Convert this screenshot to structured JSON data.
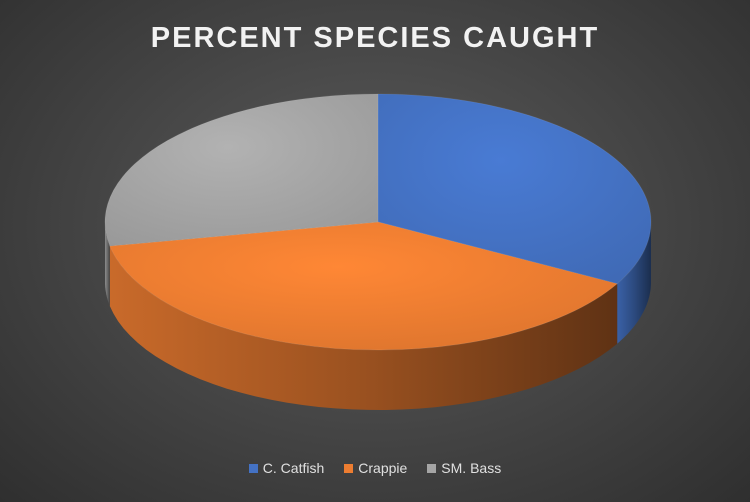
{
  "chart_data": {
    "type": "pie",
    "title": "PERCENT SPECIES CAUGHT",
    "categories": [
      "C. Catfish",
      "Crappie",
      "SM. Bass"
    ],
    "values": [
      33,
      39,
      28
    ],
    "colors": [
      "#4472C4",
      "#ED7D31",
      "#A5A5A5"
    ],
    "legend_position": "bottom",
    "style": "3d"
  }
}
